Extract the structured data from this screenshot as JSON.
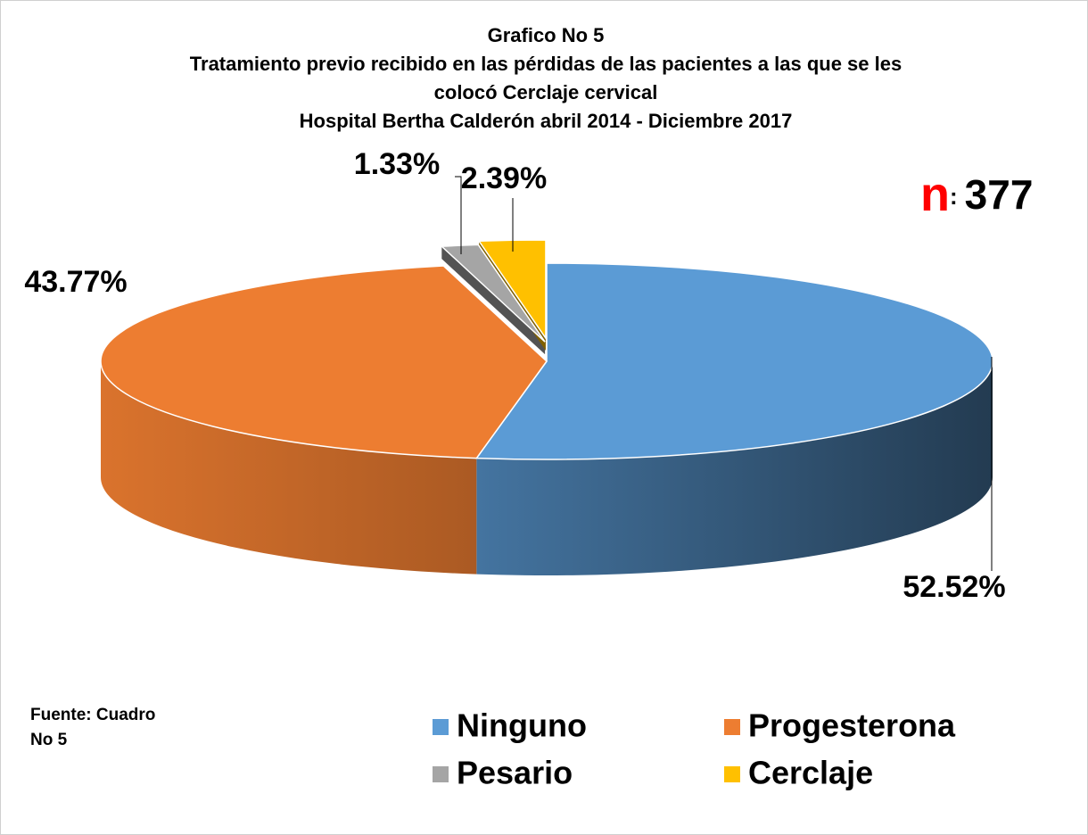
{
  "chart_data": {
    "type": "pie",
    "title": [
      "Grafico No 5",
      "Tratamiento previo recibido en las pérdidas de las  pacientes a las que se  les",
      "colocó Cerclaje cervical",
      "Hospital Bertha Calderón abril 2014 - Diciembre 2017"
    ],
    "annotation": {
      "symbol": "n",
      "separator": ":",
      "value": 377
    },
    "source": [
      "Fuente: Cuadro",
      "No 5"
    ],
    "categories": [
      "Ninguno",
      "Progesterona",
      "Pesario",
      "Cerclaje"
    ],
    "values": [
      52.52,
      43.77,
      1.33,
      2.39
    ],
    "value_labels": [
      "52.52%",
      "43.77%",
      "1.33%",
      "2.39%"
    ],
    "colors": [
      "#5b9bd5",
      "#ed7d31",
      "#a5a5a5",
      "#ffc000"
    ],
    "legend": "bottom"
  }
}
